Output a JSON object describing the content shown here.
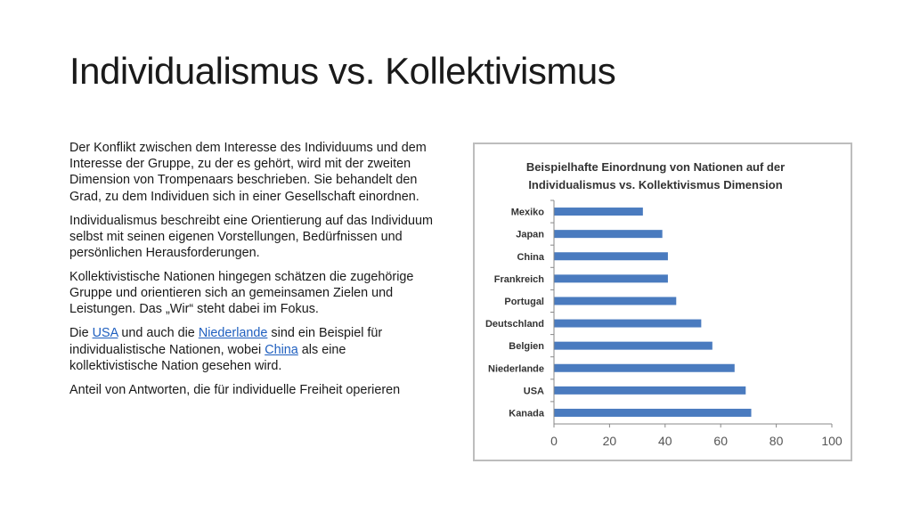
{
  "slide": {
    "title": "Individualismus vs. Kollektivismus",
    "paragraphs": {
      "p1": "Der Konflikt zwischen dem Interesse des Individuums und dem Interesse der Gruppe, zu der es gehört, wird mit der zweiten Dimension von Trompenaars beschrieben. Sie behandelt den Grad, zu dem Individuen sich in einer Gesellschaft einordnen.",
      "p2": "Individualismus beschreibt eine Orientierung auf das Individuum selbst mit seinen eigenen Vorstellungen, Bedürfnissen und persönlichen Herausforderungen.",
      "p3": "Kollektivistische Nationen hingegen schätzen die zugehörige Gruppe und orientieren sich an gemeinsamen Zielen und Leistungen. Das „Wir“ steht dabei im Fokus.",
      "p4_a": "Die ",
      "p4_link_usa": "USA",
      "p4_b": " und auch die ",
      "p4_link_nl": "Niederlande",
      "p4_c": " sind ein Beispiel für individualistische Nationen, wobei ",
      "p4_link_china": "China",
      "p4_d": " als eine kollektivistische Nation gesehen wird.",
      "p5": "Anteil von Antworten, die für individuelle Freiheit operieren"
    }
  },
  "colors": {
    "bar": "#4a7bbf",
    "link": "#1f5fbf"
  },
  "chart_data": {
    "type": "bar",
    "orientation": "horizontal",
    "title_line1": "Beispielhafte Einordnung von Nationen auf der",
    "title_line2": "Individualismus vs. Kollektivismus Dimension",
    "categories": [
      "Mexiko",
      "Japan",
      "China",
      "Frankreich",
      "Portugal",
      "Deutschland",
      "Belgien",
      "Niederlande",
      "USA",
      "Kanada"
    ],
    "values": [
      32,
      39,
      41,
      41,
      44,
      53,
      57,
      65,
      69,
      71
    ],
    "xlim": [
      0,
      100
    ],
    "xticks": [
      "0",
      "20",
      "40",
      "60",
      "80",
      "100"
    ],
    "grid": false
  }
}
